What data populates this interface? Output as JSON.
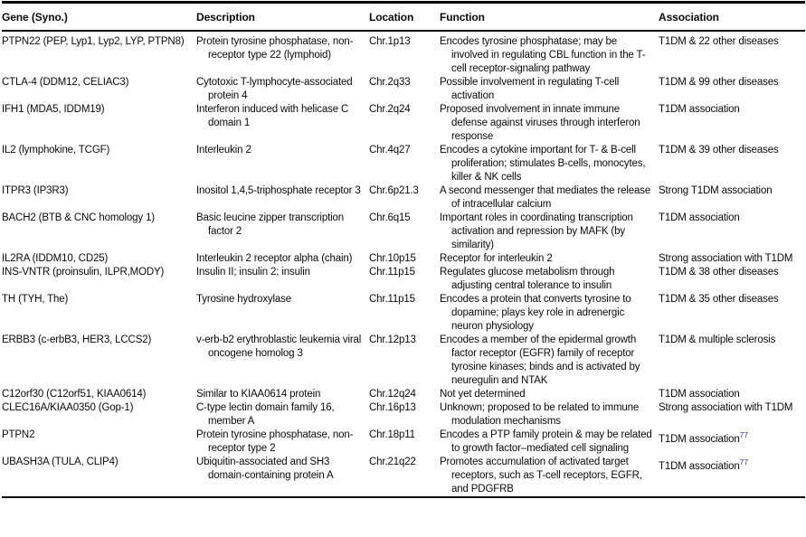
{
  "colors": {
    "citation_ref": "#2b3990",
    "text": "#0a0a0a",
    "background": "#ffffff",
    "rule": "#000000"
  },
  "table": {
    "headers": {
      "gene": "Gene (Syno.)",
      "description": "Description",
      "location": "Location",
      "function": "Function",
      "association": "Association"
    },
    "rows": [
      {
        "gene": "PTPN22 (PEP, Lyp1, Lyp2, LYP, PTPN8)",
        "description": "Protein tyrosine phosphatase, non-receptor type 22 (lymphoid)",
        "location": "Chr.1p13",
        "function": "Encodes tyrosine phosphatase; may be involved in regulating CBL function in the T-cell receptor-signaling pathway",
        "association": "T1DM & 22 other diseases"
      },
      {
        "gene": "CTLA-4 (DDM12, CELIAC3)",
        "description": "Cytotoxic T-lymphocyte-associated protein 4",
        "location": "Chr.2q33",
        "function": "Possible involvement in regulating T-cell activation",
        "association": "T1DM & 99 other diseases"
      },
      {
        "gene": "IFH1 (MDA5, IDDM19)",
        "description": "Interferon induced with helicase C domain 1",
        "location": "Chr.2q24",
        "function": "Proposed involvement in innate immune defense against viruses through interferon response",
        "association": "T1DM association"
      },
      {
        "gene": "IL2 (lymphokine, TCGF)",
        "description": "Interleukin 2",
        "location": "Chr.4q27",
        "function": "Encodes a cytokine important for T- & B-cell proliferation; stimulates B-cells, monocytes, killer & NK cells",
        "association": "T1DM & 39 other diseases"
      },
      {
        "gene": "ITPR3 (IP3R3)",
        "description": "Inositol 1,4,5-triphosphate receptor 3",
        "location": "Chr.6p21.3",
        "function": "A second messenger that mediates the release of intracellular calcium",
        "association": "Strong T1DM association"
      },
      {
        "gene": "BACH2 (BTB & CNC homology 1)",
        "description": "Basic leucine zipper transcription factor 2",
        "location": "Chr.6q15",
        "function": "Important roles in coordinating transcription activation and repression by MAFK (by similarity)",
        "association": "T1DM association"
      },
      {
        "gene": "IL2RA (IDDM10, CD25)",
        "description": "Interleukin 2 receptor alpha (chain)",
        "location": "Chr.10p15",
        "function": "Receptor for interleukin 2",
        "association": "Strong association with T1DM"
      },
      {
        "gene": "INS-VNTR (proinsulin, ILPR,MODY)",
        "description": "Insulin II; insulin 2; insulin",
        "location": "Chr.11p15",
        "function": "Regulates glucose metabolism through adjusting central tolerance to insulin",
        "association": "T1DM & 38 other diseases"
      },
      {
        "gene": "TH (TYH, The)",
        "description": "Tyrosine hydroxylase",
        "location": "Chr.11p15",
        "function": "Encodes a protein that converts tyrosine to dopamine; plays key role in adrenergic neuron physiology",
        "association": "T1DM & 35 other diseases"
      },
      {
        "gene": "ERBB3 (c-erbB3, HER3, LCCS2)",
        "description": "v-erb-b2 erythroblastic leukemia viral oncogene homolog 3",
        "location": "Chr.12p13",
        "function": "Encodes a member of the epidermal growth factor receptor (EGFR) family of receptor tyrosine kinases; binds and is activated by neuregulin and NTAK",
        "association": "T1DM & multiple sclerosis"
      },
      {
        "gene": "C12orf30 (C12orf51, KIAA0614)",
        "description": "Similar to KIAA0614 protein",
        "location": "Chr.12q24",
        "function": "Not yet determined",
        "association": "T1DM association"
      },
      {
        "gene": "CLEC16A/KIAA0350 (Gop-1)",
        "description": "C-type lectin domain family 16, member A",
        "location": "Chr.16p13",
        "function": "Unknown; proposed to be related to immune modulation mechanisms",
        "association": "Strong association with T1DM"
      },
      {
        "gene": "PTPN2",
        "description": "Protein tyrosine phosphatase, non-receptor type 2",
        "location": "Chr.18p11",
        "function": "Encodes a PTP family protein & may be related to growth factor–mediated cell signaling",
        "association": "T1DM association",
        "association_sup": "77"
      },
      {
        "gene": "UBASH3A (TULA, CLIP4)",
        "description": "Ubiquitin-associated and SH3 domain-containing protein A",
        "location": "Chr.21q22",
        "function": "Promotes accumulation of activated target receptors, such as T-cell receptors, EGFR, and PDGFRB",
        "association": "T1DM association",
        "association_sup": "77"
      }
    ]
  }
}
